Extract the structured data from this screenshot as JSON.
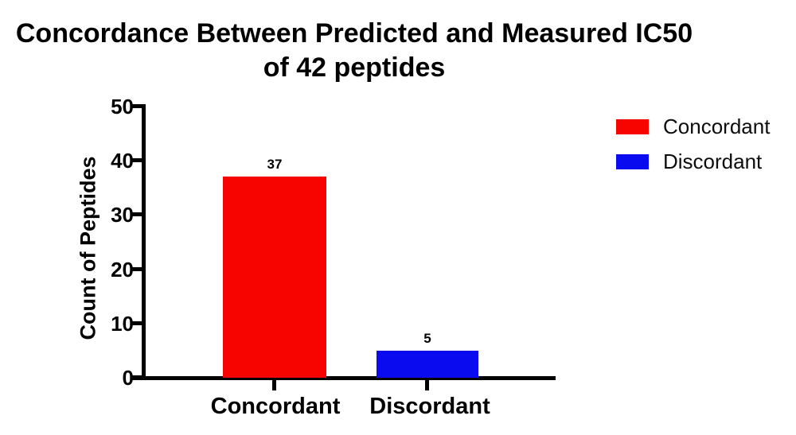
{
  "figure": {
    "background": "#ffffff",
    "text_color": "#000000",
    "axis_color": "#000000"
  },
  "chart_data": {
    "type": "bar",
    "title": "Concordance Between Predicted and Measured IC50 of 42 peptides",
    "title_lines": [
      "Concordance Between Predicted and Measured IC50",
      "of 42 peptides"
    ],
    "categories": [
      "Concordant",
      "Discordant"
    ],
    "values": [
      37,
      5
    ],
    "value_labels": [
      "37",
      "5"
    ],
    "colors": [
      "#f80400",
      "#0b0bf0"
    ],
    "xlabel": "",
    "ylabel": "Count of Peptides",
    "ylim": [
      0,
      50
    ],
    "yticks": [
      0,
      10,
      20,
      30,
      40,
      50
    ],
    "ytick_labels_top_to_bottom": [
      "50",
      "40",
      "30",
      "20",
      "10",
      "0"
    ],
    "grid": false,
    "legend": {
      "position": "right",
      "entries": [
        {
          "label": "Concordant",
          "color": "#f80400"
        },
        {
          "label": "Discordant",
          "color": "#0b0bf0"
        }
      ]
    }
  }
}
